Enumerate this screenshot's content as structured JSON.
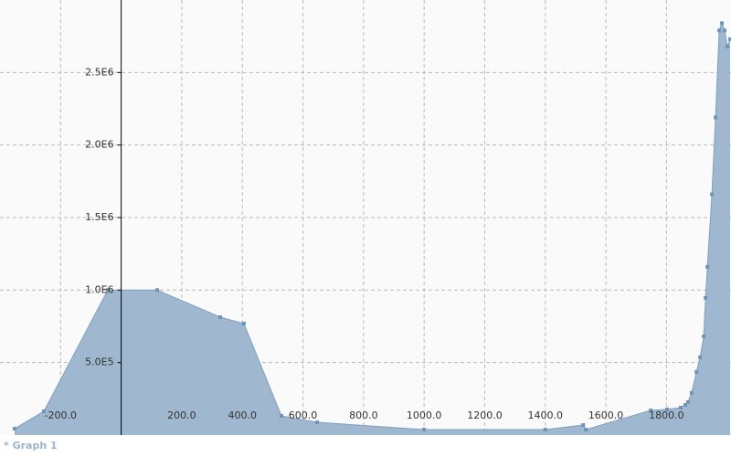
{
  "chart_data": {
    "type": "area",
    "x": [
      -352,
      -255,
      -44,
      119,
      327,
      405,
      529,
      647,
      1000,
      1400,
      1525,
      1534,
      1748,
      1802,
      1847,
      1862,
      1871,
      1883,
      1899,
      1911,
      1923,
      1929,
      1935,
      1950,
      1962,
      1974,
      1983,
      1992,
      2001,
      2010
    ],
    "series": [
      {
        "name": "* Graph 1",
        "color": "#9ab4cc",
        "values": [
          44000,
          164000,
          1000000,
          1000000,
          813000,
          769000,
          132000,
          88000,
          38000,
          38000,
          69000,
          38000,
          170000,
          177000,
          189000,
          208000,
          227000,
          290000,
          435000,
          536000,
          681000,
          946000,
          1160000,
          1660000,
          2190000,
          2790000,
          2840000,
          2790000,
          2680000,
          2730000
        ]
      }
    ],
    "xlim": [
      -400,
      2013
    ],
    "ylim": [
      0,
      3000000
    ],
    "xticks": [
      {
        "value": -200,
        "label": "-200.0"
      },
      {
        "value": 200,
        "label": "200.0"
      },
      {
        "value": 400,
        "label": "400.0"
      },
      {
        "value": 600,
        "label": "600.0"
      },
      {
        "value": 800,
        "label": "800.0"
      },
      {
        "value": 1000,
        "label": "1000.0"
      },
      {
        "value": 1200,
        "label": "1200.0"
      },
      {
        "value": 1400,
        "label": "1400.0"
      },
      {
        "value": 1600,
        "label": "1600.0"
      },
      {
        "value": 1800,
        "label": "1800.0"
      }
    ],
    "yticks": [
      {
        "value": 500000,
        "label": "5.0E5"
      },
      {
        "value": 1000000,
        "label": "1.0E6"
      },
      {
        "value": 1500000,
        "label": "1.5E6"
      },
      {
        "value": 2000000,
        "label": "2.0E6"
      },
      {
        "value": 2500000,
        "label": "2.5E6"
      }
    ],
    "grid": true
  }
}
